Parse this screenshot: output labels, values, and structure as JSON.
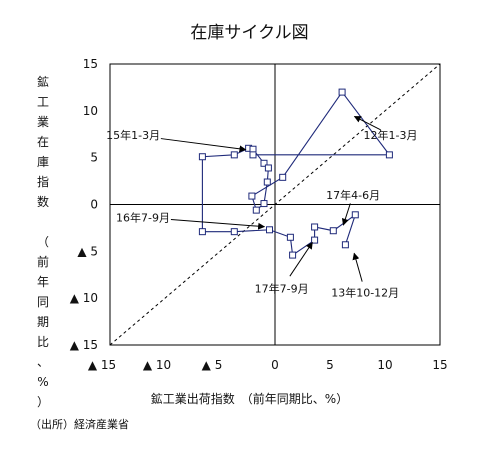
{
  "chart_data": {
    "type": "scatter",
    "title": "在庫サイクル図",
    "xlabel": "鉱工業出荷指数　（前年同期比、%）",
    "ylabel": [
      "鉱",
      "工",
      "業",
      "在",
      "庫",
      "指",
      "数",
      "",
      "（",
      "前",
      "年",
      "同",
      "期",
      "比",
      "、",
      "%",
      "）"
    ],
    "xlim": [
      -15,
      15
    ],
    "ylim": [
      -15,
      15
    ],
    "x_ticks": [
      {
        "v": -15,
        "label": "▲ 15"
      },
      {
        "v": -10,
        "label": "▲ 10"
      },
      {
        "v": -5,
        "label": "▲ 5"
      },
      {
        "v": 0,
        "label": "0"
      },
      {
        "v": 5,
        "label": "5"
      },
      {
        "v": 10,
        "label": "10"
      },
      {
        "v": 15,
        "label": "15"
      }
    ],
    "y_ticks": [
      {
        "v": 15,
        "label": "15"
      },
      {
        "v": 10,
        "label": "10"
      },
      {
        "v": 5,
        "label": "5"
      },
      {
        "v": 0,
        "label": "0"
      },
      {
        "v": -5,
        "label": "▲ 5"
      },
      {
        "v": -10,
        "label": "▲ 10"
      },
      {
        "v": -15,
        "label": "▲ 15"
      }
    ],
    "grid": false,
    "diagonal_45deg": true,
    "series": [
      {
        "marker": "open-square",
        "color": "#1f2a7a",
        "points": [
          {
            "x": 6.4,
            "y": -4.3
          },
          {
            "x": 7.3,
            "y": -1.1
          },
          {
            "x": 5.3,
            "y": -2.8
          },
          {
            "x": 3.6,
            "y": -2.4
          },
          {
            "x": 3.6,
            "y": -3.8
          },
          {
            "x": 1.6,
            "y": -5.4
          },
          {
            "x": 1.4,
            "y": -3.5
          },
          {
            "x": -0.5,
            "y": -2.7
          },
          {
            "x": -3.7,
            "y": -2.9
          },
          {
            "x": -6.6,
            "y": -2.9
          },
          {
            "x": -6.6,
            "y": 5.1
          },
          {
            "x": -3.7,
            "y": 5.3
          },
          {
            "x": -2.4,
            "y": 6.0
          },
          {
            "x": -2.0,
            "y": 5.9
          },
          {
            "x": -1.0,
            "y": 4.4
          },
          {
            "x": -0.6,
            "y": 3.9
          },
          {
            "x": -0.7,
            "y": 2.4
          },
          {
            "x": -1.0,
            "y": 0.1
          },
          {
            "x": -1.7,
            "y": -0.6
          },
          {
            "x": -2.1,
            "y": 0.9
          },
          {
            "x": 0.7,
            "y": 2.9
          },
          {
            "x": 6.1,
            "y": 12.0
          },
          {
            "x": 10.4,
            "y": 5.3
          },
          {
            "x": -2.0,
            "y": 5.3
          }
        ]
      }
    ],
    "annotations": [
      {
        "text": "15年1-3月",
        "tx": -12.9,
        "ty": 7.0,
        "px": -2.3,
        "py": 5.8
      },
      {
        "text": "12年1-3月",
        "tx": 10.5,
        "ty": 7.0,
        "px": 6.9,
        "py": 9.6
      },
      {
        "text": "17年4-6月",
        "tx": 7.1,
        "ty": 0.6,
        "px": 6.1,
        "py": -2.6
      },
      {
        "text": "16年7-9月",
        "tx": -12.0,
        "ty": -1.8,
        "px": -0.6,
        "py": -2.4
      },
      {
        "text": "13年10-12月",
        "tx": 8.2,
        "ty": -9.8,
        "px": 7.1,
        "py": -4.8
      },
      {
        "text": "17年7-9月",
        "tx": 0.6,
        "ty": -9.4,
        "px": 3.6,
        "py": -3.7
      }
    ]
  },
  "source": "（出所）経済産業省"
}
